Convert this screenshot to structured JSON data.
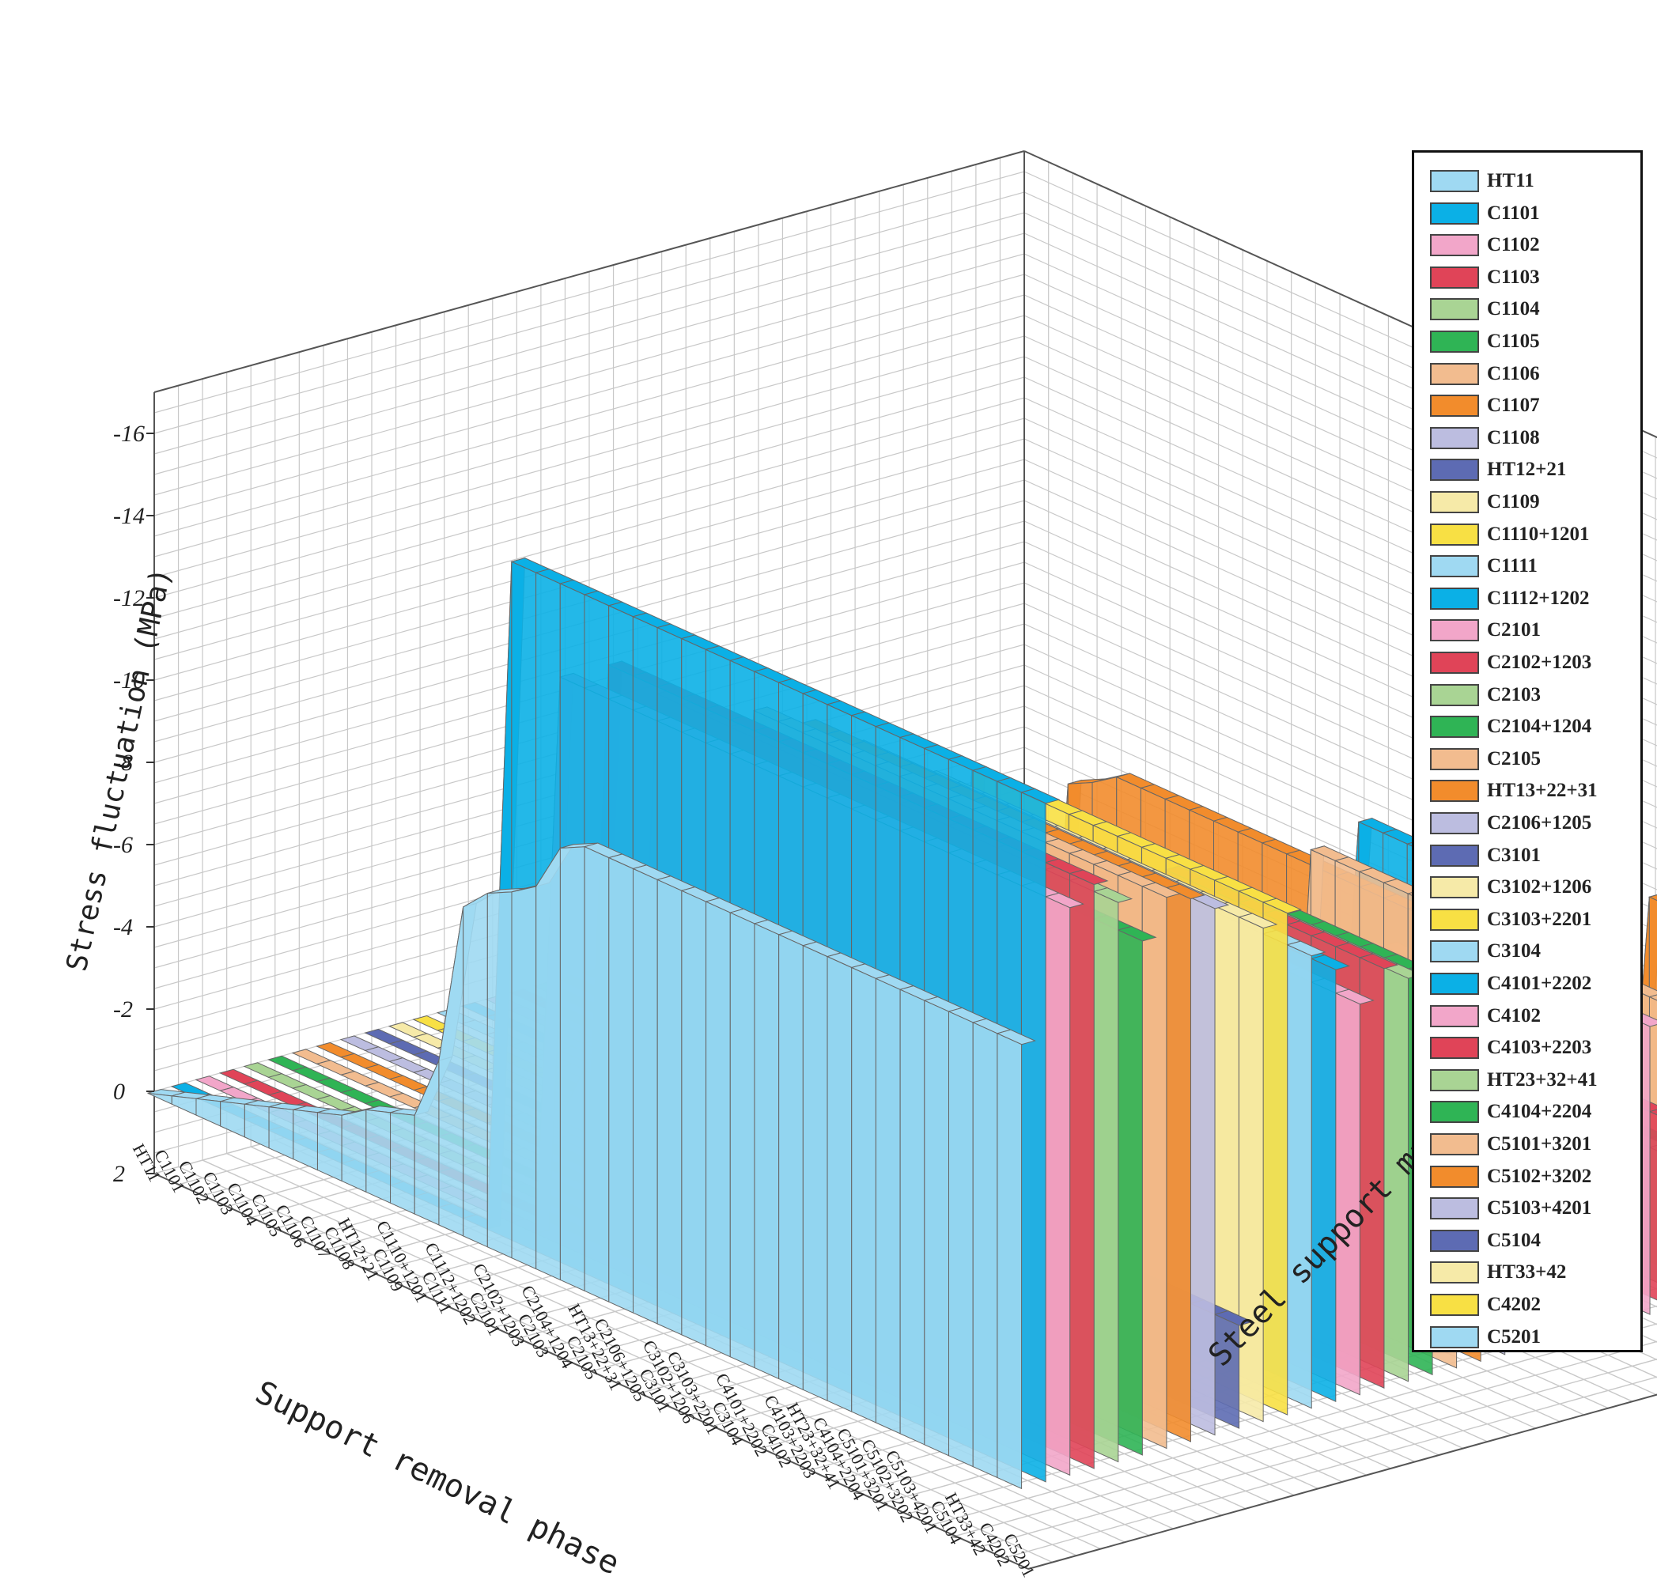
{
  "chart_data": {
    "type": "3d-bar-ribbon",
    "zlabel": "Stress fluctuation (MPa)",
    "xlabel": "Support removal phase",
    "ylabel": "Steel support marking",
    "zlim": [
      2,
      -17
    ],
    "z_ticks": [
      "2",
      "0",
      "-2",
      "-4",
      "-6",
      "-8",
      "-10",
      "-12",
      "-14",
      "-16"
    ],
    "phases": [
      "HT11",
      "C1101",
      "C1102",
      "C1103",
      "C1104",
      "C1105",
      "C1106",
      "C1107",
      "C1108",
      "HT12+21",
      "C1109",
      "C1110+1201",
      "C1111",
      "C1112+1202",
      "C2101",
      "C2102+1203",
      "C2103",
      "C2104+1204",
      "C2105",
      "HT13+22+31",
      "C2106+1205",
      "C3101",
      "C3102+1206",
      "C3103+2201",
      "C3104",
      "C4101+2202",
      "C4102",
      "C4103+2203",
      "HT23+32+41",
      "C4104+2204",
      "C5101+3201",
      "C5102+3202",
      "C5103+4201",
      "C5104",
      "HT33+42",
      "C4202",
      "C5201"
    ],
    "series": [
      {
        "name": "HT11",
        "color": "#9fd9f2",
        "values": [
          0,
          -0.2,
          -0.4,
          -0.6,
          -0.8,
          -1,
          -1.2,
          -1.4,
          -1.6,
          -2,
          -2.2,
          -2.4,
          -4,
          -8,
          -8.6,
          -8.9,
          -9.3,
          -10.5,
          -10.8
        ]
      },
      {
        "name": "C1101",
        "color": "#0bb0e6",
        "values": [
          0,
          0,
          0,
          0,
          0,
          0,
          0,
          0,
          0,
          0,
          0,
          0,
          0,
          0,
          -16.5
        ]
      },
      {
        "name": "C1102",
        "color": "#f2a6c9",
        "values": [
          0,
          0,
          0,
          0,
          0,
          0,
          0,
          0,
          0,
          0,
          0,
          0,
          0,
          0,
          0,
          -13.8
        ]
      },
      {
        "name": "C1103",
        "color": "#e04458",
        "values": [
          0,
          0,
          0,
          0,
          0,
          0,
          0,
          0,
          0,
          0,
          0,
          0,
          0,
          0,
          0,
          0,
          -14.2
        ]
      },
      {
        "name": "C1104",
        "color": "#a9d494",
        "values": [
          0,
          0,
          0,
          0,
          0,
          0,
          0,
          0,
          0,
          0,
          0,
          0,
          0,
          0,
          0,
          0,
          0,
          -13.6
        ]
      },
      {
        "name": "C1105",
        "color": "#2fb455",
        "values": [
          0,
          0,
          0,
          0,
          0,
          0,
          0,
          0,
          0,
          0,
          0,
          0,
          0,
          0,
          0,
          0,
          0,
          0,
          -12.5
        ]
      },
      {
        "name": "C1106",
        "color": "#f2bc8f",
        "values": [
          0,
          0,
          0,
          0,
          0,
          0,
          0,
          0,
          0,
          0,
          0,
          0,
          0,
          0,
          0,
          0,
          0,
          0,
          0,
          -13.4
        ]
      },
      {
        "name": "C1107",
        "color": "#f28c2c",
        "values": [
          0,
          0,
          0,
          0,
          0,
          0,
          0,
          0,
          0,
          0,
          0,
          0,
          0,
          0,
          0,
          0,
          0,
          0,
          0,
          0,
          -13.2
        ]
      },
      {
        "name": "C1108",
        "color": "#bcbde0",
        "values": [
          0,
          0,
          0,
          0,
          0,
          0,
          0,
          0,
          0,
          0,
          0,
          0,
          0,
          0,
          0,
          0,
          0,
          0,
          0,
          0,
          0,
          -12.8
        ]
      },
      {
        "name": "HT12+21",
        "color": "#5d6bb3",
        "values": [
          0,
          0,
          0,
          0,
          0,
          0,
          0,
          0,
          0,
          -1.5,
          -1.5,
          -1.8,
          -2.2,
          -2.5
        ]
      },
      {
        "name": "C1109",
        "color": "#f6eaa8",
        "values": [
          0,
          0,
          0,
          0,
          0,
          0,
          0,
          0,
          0,
          0,
          0,
          0,
          0,
          0,
          0,
          0,
          0,
          0,
          0,
          0,
          0,
          0,
          -12
        ]
      },
      {
        "name": "C1110+1201",
        "color": "#f8e044",
        "values": [
          0,
          0,
          0,
          0,
          0,
          0,
          0,
          0,
          0,
          0,
          0,
          0,
          0,
          0,
          0,
          0,
          0,
          0,
          0,
          0,
          0,
          0,
          0,
          -12.2
        ]
      },
      {
        "name": "C1111",
        "color": "#9fd9f2",
        "values": [
          0,
          0,
          0,
          0,
          0,
          0,
          0,
          0,
          0,
          0,
          0,
          0,
          0,
          0,
          0,
          0,
          0,
          0,
          0,
          0,
          0,
          0,
          0,
          0,
          -11
        ]
      },
      {
        "name": "C1112+1202",
        "color": "#0bb0e6",
        "values": [
          0,
          0,
          0,
          0,
          0,
          0,
          0,
          0,
          0,
          0,
          0,
          0,
          0,
          0,
          0,
          0,
          0,
          0,
          0,
          0,
          0,
          0,
          0,
          0,
          0,
          -10.5
        ]
      },
      {
        "name": "C2101",
        "color": "#f2a6c9",
        "values": [
          0,
          0,
          0,
          0,
          0,
          0,
          0,
          0,
          0,
          0,
          0,
          0,
          0,
          0,
          0,
          0,
          0,
          0,
          0,
          0,
          0,
          0,
          0,
          0,
          0,
          0,
          -9.5
        ]
      },
      {
        "name": "C2102+1203",
        "color": "#e04458",
        "values": [
          0,
          0,
          0,
          0,
          0,
          0,
          0,
          0,
          0,
          0,
          0,
          0,
          0,
          0,
          0,
          0,
          0,
          0,
          0,
          0,
          0,
          0,
          0,
          0,
          0,
          0,
          0,
          -10.2
        ]
      },
      {
        "name": "C2103",
        "color": "#a9d494",
        "values": [
          0,
          0,
          0,
          0,
          0,
          0,
          0,
          0,
          0,
          0,
          0,
          0,
          0,
          0,
          0,
          0,
          0,
          0,
          0,
          0,
          0,
          0,
          0,
          0,
          0,
          0,
          0,
          0,
          -9.8
        ]
      },
      {
        "name": "C2104+1204",
        "color": "#2fb455",
        "values": [
          0,
          0,
          0,
          0,
          0,
          0,
          0,
          0,
          0,
          0,
          0,
          0,
          0,
          0,
          0,
          0,
          0,
          0,
          0,
          0,
          0,
          0,
          0,
          0,
          0,
          0,
          0,
          0,
          0,
          -9.6
        ]
      },
      {
        "name": "C2105",
        "color": "#f2bc8f",
        "values": [
          0,
          0,
          0,
          0,
          0,
          0,
          0,
          0,
          0,
          0,
          0,
          0,
          0,
          0,
          0,
          0,
          0,
          0,
          0,
          0,
          0,
          0,
          0,
          0,
          0,
          0,
          0,
          0,
          0,
          0,
          -11
        ]
      },
      {
        "name": "HT13+22+31",
        "color": "#f28c2c",
        "values": [
          0,
          0,
          0,
          0,
          0,
          0,
          0,
          0,
          0,
          0,
          0,
          0,
          0,
          0,
          0,
          0,
          0,
          0,
          0,
          -9.5,
          -9.8,
          -10.2
        ]
      },
      {
        "name": "C2106+1205",
        "color": "#bcbde0",
        "values": [
          0,
          0,
          0,
          0,
          0,
          0,
          0,
          0,
          0,
          0,
          0,
          0,
          0,
          0,
          0,
          0,
          0,
          0,
          0,
          0,
          0,
          0,
          0,
          0,
          0,
          0,
          0,
          0,
          0,
          0,
          0,
          -8.6
        ]
      },
      {
        "name": "C3101",
        "color": "#5d6bb3",
        "values": [
          0,
          0,
          0,
          0,
          0,
          0,
          0,
          0,
          0,
          0,
          0,
          0,
          0,
          0,
          0,
          0,
          0,
          0,
          0,
          0,
          0,
          0,
          0,
          0,
          0,
          0,
          0,
          0,
          0,
          0,
          0,
          0,
          -13
        ]
      },
      {
        "name": "C3102+1206",
        "color": "#f6eaa8",
        "values": [
          0,
          0,
          0,
          0,
          0,
          0,
          0,
          0,
          0,
          0,
          0,
          0,
          0,
          0,
          0,
          0,
          0,
          0,
          0,
          0,
          0,
          0,
          0,
          0,
          0,
          0,
          0,
          0,
          0,
          0,
          0,
          0,
          0,
          -12
        ]
      },
      {
        "name": "C3103+2201",
        "color": "#f8e044",
        "values": [
          0,
          0,
          0,
          0,
          0,
          0,
          0,
          0,
          0,
          0,
          0,
          0,
          0,
          0,
          0,
          0,
          0,
          0,
          0,
          0,
          0,
          0,
          0,
          0,
          0,
          0,
          0,
          0,
          0,
          0,
          0,
          0,
          0,
          0,
          -12
        ]
      },
      {
        "name": "C3104",
        "color": "#9fd9f2",
        "values": [
          0,
          0,
          0,
          0,
          0,
          0,
          0,
          0,
          0,
          0,
          0,
          0,
          0,
          0,
          0,
          0,
          0,
          0,
          0,
          0,
          0,
          0,
          0,
          0,
          0,
          0,
          0,
          0,
          0,
          0,
          0,
          0,
          0,
          0,
          0,
          0,
          0
        ]
      },
      {
        "name": "C4101+2202",
        "color": "#0bb0e6",
        "values": [
          0,
          0,
          0,
          0,
          0,
          0,
          0,
          0,
          0,
          0,
          0,
          0,
          0,
          0,
          0,
          0,
          0,
          0,
          0,
          0,
          0,
          0,
          0,
          0,
          0,
          -9.2
        ]
      },
      {
        "name": "C4102",
        "color": "#f2a6c9",
        "values": [
          0,
          0,
          0,
          0,
          0,
          0,
          0,
          0,
          0,
          0,
          0,
          0,
          0,
          0,
          0,
          0,
          0,
          0,
          0,
          0,
          0,
          0,
          0,
          0,
          0,
          0,
          -7
        ]
      },
      {
        "name": "C4103+2203",
        "color": "#e04458",
        "values": [
          0,
          0,
          0,
          0,
          0,
          0,
          0,
          0,
          0,
          0,
          0,
          0,
          0,
          0,
          0,
          0,
          0,
          0,
          0,
          0,
          0,
          0,
          0,
          0,
          0,
          0,
          0,
          -4.5
        ]
      },
      {
        "name": "HT23+32+41",
        "color": "#a9d494",
        "values": [
          0,
          0,
          0,
          0,
          0,
          0,
          0,
          0,
          0,
          0,
          0,
          0,
          0,
          0,
          0,
          0,
          0,
          0,
          0,
          0,
          0,
          0,
          0,
          0,
          0,
          0,
          0,
          -3,
          -3.5,
          -3.2
        ]
      },
      {
        "name": "C4104+2204",
        "color": "#2fb455",
        "values": [
          0,
          0,
          0,
          0,
          0,
          0,
          0,
          0,
          0,
          0,
          0,
          0,
          0,
          0,
          0,
          0,
          0,
          0,
          0,
          0,
          0,
          0,
          0,
          0,
          0,
          0,
          0,
          0,
          0,
          -3
        ]
      },
      {
        "name": "C5101+3201",
        "color": "#f2bc8f",
        "values": [
          0,
          0,
          0,
          0,
          0,
          0,
          0,
          0,
          0,
          0,
          0,
          0,
          0,
          0,
          0,
          0,
          0,
          0,
          0,
          0,
          0,
          0,
          0,
          0,
          0,
          0,
          0,
          0,
          0,
          0,
          -6
        ]
      },
      {
        "name": "C5102+3202",
        "color": "#f28c2c",
        "values": [
          0,
          0,
          0,
          0,
          0,
          0,
          0,
          0,
          0,
          0,
          0,
          0,
          0,
          0,
          0,
          0,
          0,
          0,
          0,
          0,
          0,
          0,
          0,
          0,
          0,
          0,
          0,
          0,
          0,
          0,
          0,
          -8
        ]
      },
      {
        "name": "C5103+4201",
        "color": "#bcbde0",
        "values": [
          0,
          0,
          0,
          0,
          0,
          0,
          0,
          0,
          0,
          0,
          0,
          0,
          0,
          0,
          0,
          0,
          0,
          0,
          0,
          0,
          0,
          0,
          0,
          0,
          0,
          0,
          0,
          0,
          0,
          0,
          0,
          0,
          -2
        ]
      },
      {
        "name": "C5104",
        "color": "#5d6bb3",
        "values": [
          0,
          0,
          0,
          0,
          0,
          0,
          0,
          0,
          0,
          0,
          0,
          0,
          0,
          0,
          0,
          0,
          0,
          0,
          0,
          0,
          0,
          0,
          0,
          0,
          0,
          0,
          0,
          0,
          0,
          0,
          0,
          0,
          0,
          0
        ]
      },
      {
        "name": "HT33+42",
        "color": "#f6eaa8",
        "values": [
          0,
          0,
          0,
          0,
          0,
          0,
          0,
          0,
          0,
          0,
          0,
          0,
          0,
          0,
          0,
          0,
          0,
          0,
          0,
          0,
          0,
          0,
          0,
          0,
          0,
          0,
          0,
          0,
          0,
          0,
          0,
          0,
          0,
          0,
          0,
          0
        ]
      },
      {
        "name": "C4202",
        "color": "#f8e044",
        "values": [
          0,
          0,
          0,
          0,
          0,
          0,
          0,
          0,
          0,
          0,
          0,
          0,
          0,
          0,
          0,
          0,
          0,
          0,
          0,
          0,
          0,
          0,
          0,
          0,
          0,
          0,
          0,
          0,
          0,
          0,
          0,
          0,
          0,
          0,
          0,
          0,
          0
        ]
      },
      {
        "name": "C5201",
        "color": "#9fd9f2",
        "values": [
          0,
          0,
          0,
          0,
          0,
          0,
          0,
          0,
          0,
          0,
          0,
          0,
          0,
          0,
          0,
          0,
          0,
          0,
          0,
          0,
          0,
          0,
          0,
          0,
          0,
          0,
          0,
          0,
          0,
          0,
          0,
          0,
          0,
          0,
          0,
          0,
          0
        ]
      }
    ]
  }
}
